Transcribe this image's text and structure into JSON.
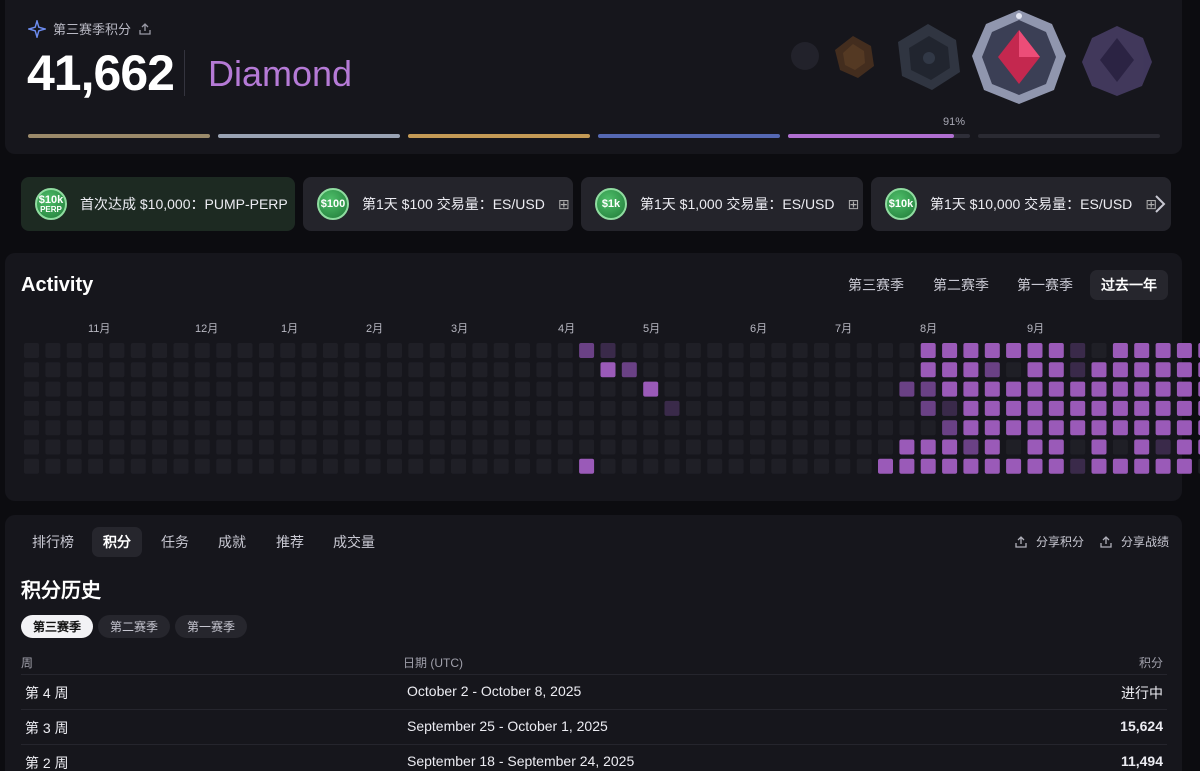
{
  "header": {
    "season_label": "第三赛季积分",
    "points": "41,662",
    "tier": "Diamond",
    "progress_percent": "91%",
    "progress_value": 91,
    "tier_bar_colors": [
      "#9b8a6a",
      "#9aa3b4",
      "#c49a55",
      "#5568b3",
      "#b06fd0",
      "#2a2a32"
    ]
  },
  "achievements": [
    {
      "coin": "$10k",
      "coin_sub": "PERP",
      "label": "首次达成 $10,000：PUMP-PERP",
      "gift": false
    },
    {
      "coin": "$100",
      "coin_sub": "",
      "label": "第1天 $100 交易量：ES/USD",
      "gift": true
    },
    {
      "coin": "$1k",
      "coin_sub": "",
      "label": "第1天 $1,000 交易量：ES/USD",
      "gift": true
    },
    {
      "coin": "$10k",
      "coin_sub": "",
      "label": "第1天 $10,000 交易量：ES/USD",
      "gift": true
    }
  ],
  "activity": {
    "title": "Activity",
    "tabs": [
      "第三赛季",
      "第二赛季",
      "第一赛季",
      "过去一年"
    ],
    "active_tab": "过去一年",
    "months": [
      "11月",
      "12月",
      "1月",
      "2月",
      "3月",
      "4月",
      "5月",
      "6月",
      "7月",
      "8月",
      "9月"
    ],
    "heat_levels_by_week": [
      "0000000",
      "0000000",
      "0000000",
      "0000000",
      "0000000",
      "0000000",
      "0000000",
      "0000000",
      "0000000",
      "0000000",
      "0000000",
      "0000000",
      "0000000",
      "0000000",
      "0000000",
      "0000000",
      "0000000",
      "0000000",
      "0000000",
      "0000000",
      "0000000",
      "0000000",
      "0000000",
      "0000000",
      "0000000",
      "0000000",
      "2000003",
      "1300000",
      "0200000",
      "0030000",
      "0001000",
      "0000000",
      "0000000",
      "0000000",
      "0000000",
      "0000000",
      "0000000",
      "0000000",
      "0000000",
      "0000000",
      "0000003",
      "0020033",
      "3322033",
      "3331233",
      "3333323",
      "3233333",
      "3033303",
      "3333333",
      "3333333",
      "1133301",
      "0333333",
      "3333303",
      "3333333",
      "3333313",
      "3333333",
      "3333330"
    ]
  },
  "tabs": {
    "items": [
      "排行榜",
      "积分",
      "任务",
      "成就",
      "推荐",
      "成交量"
    ],
    "active": "积分",
    "share_points": "分享积分",
    "share_stats": "分享战绩"
  },
  "history": {
    "title": "积分历史",
    "seasons": [
      "第三赛季",
      "第二赛季",
      "第一赛季"
    ],
    "active_season": "第三赛季",
    "columns": {
      "week": "周",
      "date": "日期 (UTC)",
      "points": "积分"
    },
    "rows": [
      {
        "week": "第 4 周",
        "date": "October 2 - October 8, 2025",
        "points": "进行中"
      },
      {
        "week": "第 3 周",
        "date": "September 25 - October 1, 2025",
        "points": "15,624"
      },
      {
        "week": "第 2 周",
        "date": "September 18 - September 24, 2025",
        "points": "11,494"
      }
    ]
  }
}
